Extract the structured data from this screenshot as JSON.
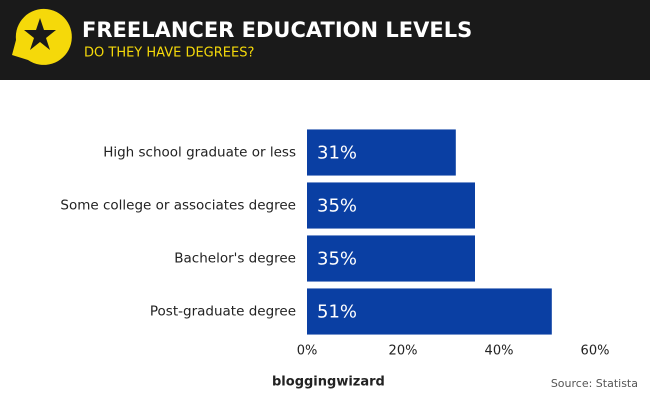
{
  "chart_data": {
    "type": "bar",
    "horizontal": true,
    "title": "FREELANCER EDUCATION LEVELS",
    "subtitle": "DO THEY HAVE DEGREES?",
    "categories": [
      "High school graduate or less",
      "Some college or associates degree",
      "Bachelor's degree",
      "Post-graduate degree"
    ],
    "values": [
      31,
      35,
      35,
      51
    ],
    "value_labels": [
      "31%",
      "35%",
      "35%",
      "51%"
    ],
    "color": "#0a3fa3",
    "xlim": [
      0,
      60
    ],
    "xticks": [
      {
        "value": 0,
        "label": "0%"
      },
      {
        "value": 20,
        "label": "20%"
      },
      {
        "value": 40,
        "label": "40%"
      },
      {
        "value": 60,
        "label": "60%"
      }
    ],
    "grid": false,
    "brand": "bloggingwizard",
    "source": "Source: Statista"
  }
}
